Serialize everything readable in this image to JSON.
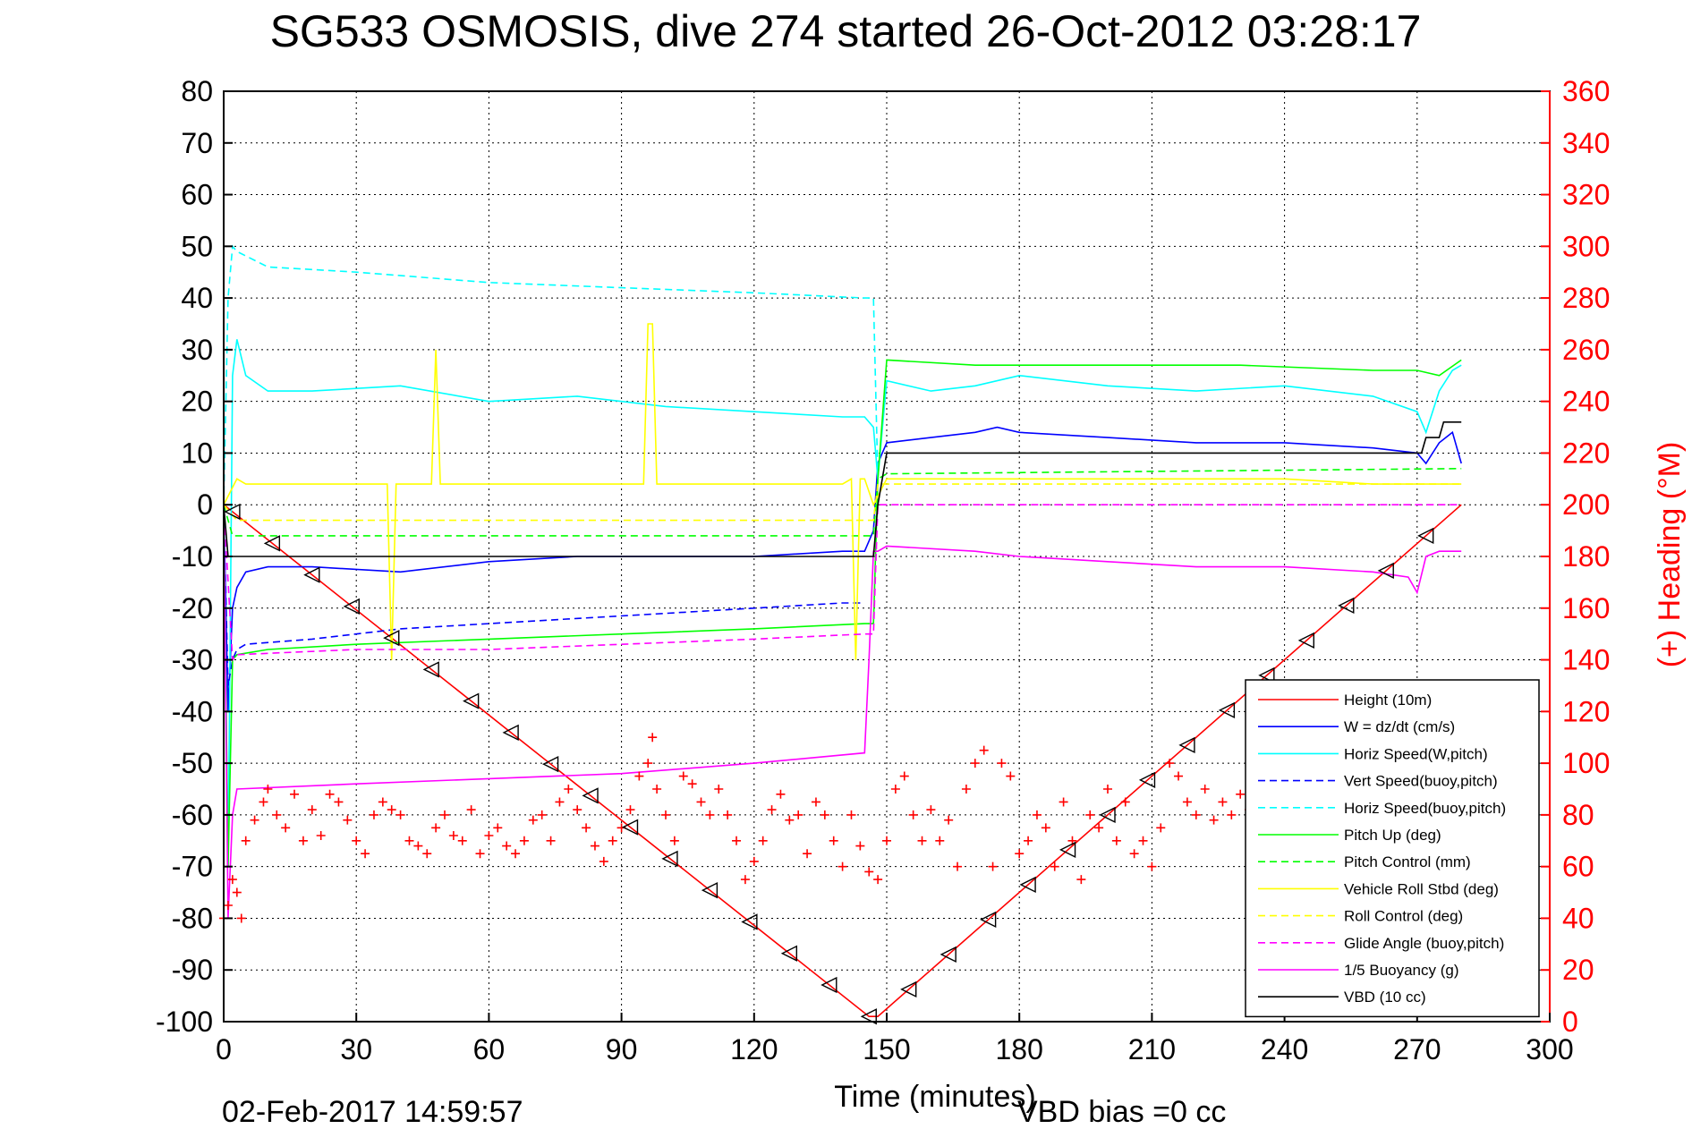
{
  "chart_data": {
    "type": "line",
    "title": "SG533 OSMOSIS, dive 274 started 26-Oct-2012 03:28:17",
    "xlabel": "Time (minutes)",
    "ylabel": "",
    "y2label": "(+) Heading (°M)",
    "footer_date": "02-Feb-2017 14:59:57",
    "footer_note": "VBD bias =0 cc",
    "xlim": [
      0,
      300
    ],
    "ylim": [
      -100,
      80
    ],
    "y2lim": [
      0,
      360
    ],
    "xticks": [
      "0",
      "30",
      "60",
      "90",
      "120",
      "150",
      "180",
      "210",
      "240",
      "270",
      "300"
    ],
    "yticks": [
      "80",
      "70",
      "60",
      "50",
      "40",
      "30",
      "20",
      "10",
      "0",
      "-10",
      "-20",
      "-30",
      "-40",
      "-50",
      "-60",
      "-70",
      "-80",
      "-90",
      "-100"
    ],
    "y2ticks": [
      "360",
      "340",
      "320",
      "300",
      "280",
      "260",
      "240",
      "220",
      "200",
      "180",
      "160",
      "140",
      "120",
      "100",
      "80",
      "60",
      "40",
      "20",
      "0"
    ],
    "grid": true,
    "legend_position": "lower-right",
    "series": [
      {
        "name": "Height (10m)",
        "color": "#ff0000",
        "style": "solid",
        "x": [
          0,
          146,
          148,
          280
        ],
        "y": [
          0,
          -99,
          -99,
          0
        ]
      },
      {
        "name": "W = dz/dt (cm/s)",
        "color": "#0000ff",
        "style": "solid",
        "x": [
          0,
          1,
          2,
          3,
          5,
          10,
          20,
          40,
          60,
          80,
          100,
          120,
          140,
          145,
          147,
          148,
          150,
          160,
          170,
          175,
          180,
          200,
          220,
          240,
          260,
          270,
          272,
          275,
          278,
          280
        ],
        "y": [
          0,
          -40,
          -20,
          -16,
          -13,
          -12,
          -12,
          -13,
          -11,
          -10,
          -10,
          -10,
          -9,
          -9,
          -5,
          8,
          12,
          13,
          14,
          15,
          14,
          13,
          12,
          12,
          11,
          10,
          8,
          12,
          14,
          8
        ]
      },
      {
        "name": "Horiz Speed(W,pitch)",
        "color": "#00ffff",
        "style": "solid",
        "x": [
          0,
          1,
          2,
          3,
          5,
          10,
          20,
          40,
          60,
          80,
          100,
          120,
          140,
          145,
          147,
          148,
          150,
          160,
          170,
          180,
          200,
          220,
          240,
          260,
          270,
          272,
          275,
          278,
          280
        ],
        "y": [
          0,
          -70,
          25,
          32,
          25,
          22,
          22,
          23,
          20,
          21,
          19,
          18,
          17,
          17,
          15,
          5,
          24,
          22,
          23,
          25,
          23,
          22,
          23,
          21,
          18,
          14,
          22,
          26,
          27
        ]
      },
      {
        "name": "Vert Speed(buoy,pitch)",
        "color": "#0000ff",
        "style": "dashed",
        "x": [
          0,
          1,
          2,
          3,
          5,
          20,
          40,
          60,
          80,
          100,
          120,
          140,
          145
        ],
        "y": [
          0,
          -35,
          -30,
          -28,
          -27,
          -26,
          -24,
          -23,
          -22,
          -21,
          -20,
          -19,
          -19
        ]
      },
      {
        "name": "Horiz Speed(buoy,pitch)",
        "color": "#00ffff",
        "style": "dashed",
        "x": [
          0,
          1,
          2,
          3,
          10,
          30,
          60,
          90,
          120,
          145,
          147,
          148
        ],
        "y": [
          0,
          40,
          50,
          49,
          46,
          45,
          43,
          42,
          41,
          40,
          40,
          5
        ]
      },
      {
        "name": "Pitch Up (deg)",
        "color": "#00ff00",
        "style": "solid",
        "x": [
          0,
          1,
          2,
          3,
          10,
          30,
          60,
          90,
          120,
          145,
          147,
          148,
          150,
          170,
          200,
          230,
          260,
          270,
          275,
          280
        ],
        "y": [
          0,
          -70,
          -30,
          -29,
          -28,
          -27,
          -26,
          -25,
          -24,
          -23,
          -23,
          5,
          28,
          27,
          27,
          27,
          26,
          26,
          25,
          28
        ]
      },
      {
        "name": "Pitch Control (mm)",
        "color": "#00ff00",
        "style": "dashed",
        "x": [
          0,
          2,
          3,
          147,
          148,
          150,
          280
        ],
        "y": [
          0,
          -6,
          -6,
          -6,
          5,
          6,
          7
        ]
      },
      {
        "name": "Vehicle Roll Stbd (deg)",
        "color": "#ffff00",
        "style": "solid",
        "x": [
          0,
          3,
          5,
          37,
          38,
          39,
          47,
          48,
          49,
          90,
          95,
          96,
          97,
          98,
          140,
          142,
          143,
          144,
          145,
          147,
          150,
          180,
          210,
          240,
          260,
          270,
          275,
          280
        ],
        "y": [
          0,
          5,
          4,
          4,
          -30,
          4,
          4,
          30,
          4,
          4,
          4,
          35,
          35,
          4,
          4,
          5,
          -30,
          5,
          5,
          0,
          5,
          5,
          5,
          5,
          4,
          4,
          4,
          4
        ]
      },
      {
        "name": "Roll Control (deg)",
        "color": "#ffff00",
        "style": "dashed",
        "x": [
          0,
          3,
          5,
          147,
          148,
          150,
          280
        ],
        "y": [
          0,
          -3,
          -3,
          -3,
          4,
          4,
          4
        ]
      },
      {
        "name": "Glide Angle (buoy,pitch)",
        "color": "#ff00ff",
        "style": "dashed",
        "x": [
          0,
          2,
          3,
          30,
          60,
          90,
          120,
          145,
          147,
          148,
          150,
          280
        ],
        "y": [
          0,
          -30,
          -29,
          -28,
          -28,
          -27,
          -26,
          -25,
          -25,
          0,
          0,
          0
        ]
      },
      {
        "name": "1/5 Buoyancy (g)",
        "color": "#ff00ff",
        "style": "solid",
        "x": [
          0,
          1,
          2,
          3,
          30,
          60,
          90,
          120,
          145,
          146,
          147,
          148,
          150,
          170,
          180,
          200,
          220,
          240,
          260,
          268,
          270,
          272,
          275,
          280
        ],
        "y": [
          0,
          -80,
          -60,
          -55,
          -54,
          -53,
          -52,
          -50,
          -48,
          -30,
          -9,
          -9,
          -8,
          -9,
          -10,
          -11,
          -12,
          -12,
          -13,
          -14,
          -17,
          -10,
          -9,
          -9
        ]
      },
      {
        "name": "VBD (10 cc)",
        "color": "#000000",
        "style": "solid",
        "x": [
          0,
          1,
          2,
          3,
          147,
          148,
          150,
          270,
          271,
          272,
          275,
          276,
          280
        ],
        "y": [
          0,
          -10,
          -10,
          -10,
          -10,
          0,
          10,
          10,
          10,
          13,
          13,
          16,
          16
        ]
      }
    ],
    "heading": {
      "name": "Heading",
      "color": "#ff0000",
      "marker": "+",
      "axis": "right",
      "x": [
        0,
        1,
        2,
        3,
        4,
        5,
        7,
        9,
        10,
        12,
        14,
        16,
        18,
        20,
        22,
        24,
        26,
        28,
        30,
        32,
        34,
        36,
        38,
        40,
        42,
        44,
        46,
        48,
        50,
        52,
        54,
        56,
        58,
        60,
        62,
        64,
        66,
        68,
        70,
        72,
        74,
        76,
        78,
        80,
        82,
        84,
        86,
        88,
        90,
        92,
        94,
        96,
        97,
        98,
        100,
        102,
        104,
        106,
        108,
        110,
        112,
        114,
        116,
        118,
        120,
        122,
        124,
        126,
        128,
        130,
        132,
        134,
        136,
        138,
        140,
        142,
        144,
        146,
        148,
        150,
        152,
        154,
        156,
        158,
        160,
        162,
        164,
        166,
        168,
        170,
        172,
        174,
        176,
        178,
        180,
        182,
        184,
        186,
        188,
        190,
        192,
        194,
        196,
        198,
        200,
        202,
        204,
        206,
        208,
        210,
        212,
        214,
        216,
        218,
        220,
        222,
        224,
        226,
        228,
        230,
        232,
        234
      ],
      "y": [
        40,
        45,
        55,
        50,
        40,
        70,
        78,
        85,
        90,
        80,
        75,
        88,
        70,
        82,
        72,
        88,
        85,
        78,
        70,
        65,
        80,
        85,
        82,
        80,
        70,
        68,
        65,
        75,
        80,
        72,
        70,
        82,
        65,
        72,
        75,
        68,
        65,
        70,
        78,
        80,
        70,
        85,
        90,
        82,
        75,
        68,
        62,
        70,
        75,
        82,
        95,
        100,
        110,
        90,
        80,
        70,
        95,
        92,
        85,
        80,
        90,
        80,
        70,
        55,
        62,
        70,
        82,
        88,
        78,
        80,
        65,
        85,
        80,
        70,
        60,
        80,
        68,
        58,
        55,
        70,
        90,
        95,
        80,
        70,
        82,
        70,
        78,
        60,
        90,
        100,
        105,
        60,
        100,
        95,
        65,
        70,
        80,
        75,
        60,
        85,
        70,
        55,
        80,
        75,
        90,
        70,
        85,
        65,
        70,
        60,
        75,
        100,
        95,
        85,
        80,
        90,
        78,
        85,
        80,
        88,
        82,
        85
      ]
    },
    "legend_entries": [
      "Height (10m)",
      "W = dz/dt (cm/s)",
      "Horiz Speed(W,pitch)",
      "Vert Speed(buoy,pitch)",
      "Horiz Speed(buoy,pitch)",
      "Pitch Up (deg)",
      "Pitch Control (mm)",
      "Vehicle Roll Stbd (deg)",
      "Roll Control (deg)",
      "Glide Angle (buoy,pitch)",
      "1/5 Buoyancy (g)",
      "VBD (10 cc)"
    ]
  }
}
